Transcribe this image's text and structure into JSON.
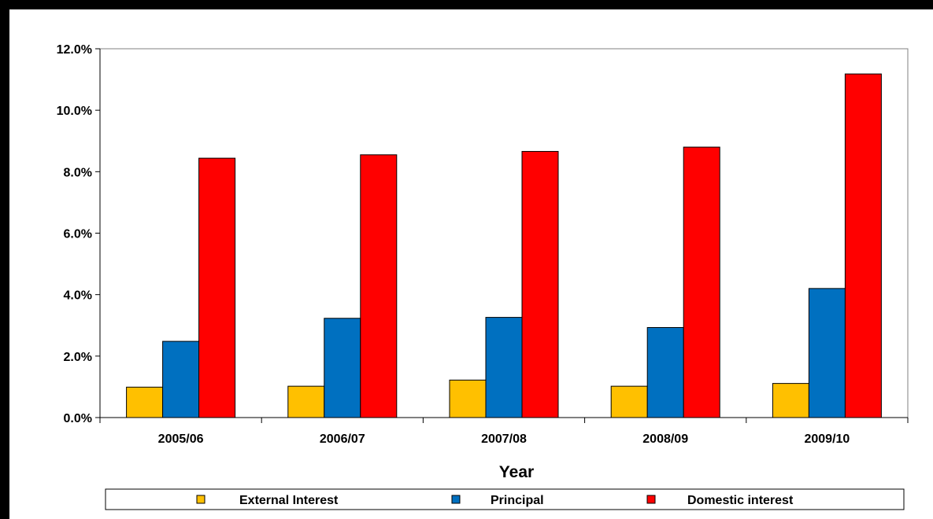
{
  "chart_data": {
    "type": "bar",
    "title": "",
    "xlabel": "Year",
    "ylabel": "",
    "categories": [
      "2005/06",
      "2006/07",
      "2007/08",
      "2008/09",
      "2009/10"
    ],
    "series": [
      {
        "name": "External Interest",
        "color": "#FFC000",
        "values": [
          0.99,
          1.02,
          1.22,
          1.02,
          1.11
        ]
      },
      {
        "name": "Principal",
        "color": "#0070C0",
        "values": [
          2.48,
          3.23,
          3.26,
          2.93,
          4.2
        ]
      },
      {
        "name": "Domestic interest",
        "color": "#FF0000",
        "values": [
          8.44,
          8.55,
          8.66,
          8.8,
          11.18
        ]
      }
    ],
    "ylim": [
      0,
      12
    ],
    "yticks": [
      "0.0%",
      "2.0%",
      "4.0%",
      "6.0%",
      "8.0%",
      "10.0%",
      "12.0%"
    ],
    "ytick_values": [
      0,
      2,
      4,
      6,
      8,
      10,
      12
    ],
    "grid": false,
    "legend_position": "bottom"
  }
}
